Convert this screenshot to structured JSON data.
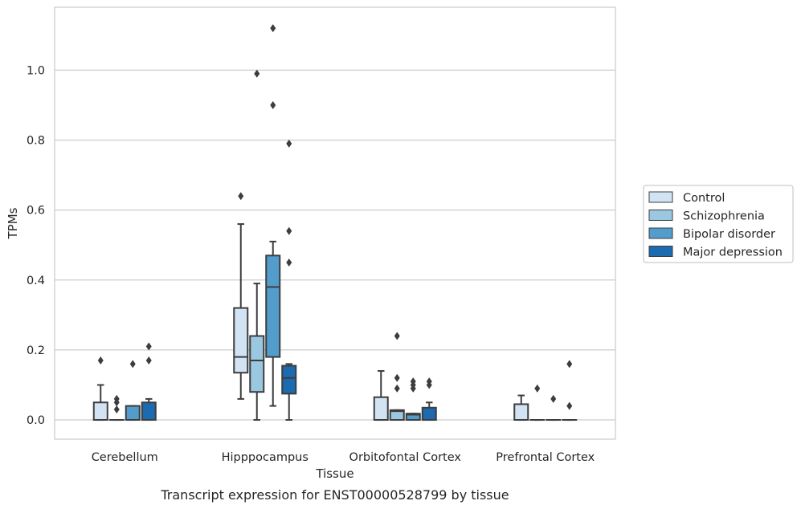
{
  "chart_data": {
    "type": "box",
    "title": "",
    "caption": "Transcript expression for ENST00000528799 by tissue",
    "xlabel": "Tissue",
    "ylabel": "TPMs",
    "ylim": [
      -0.055,
      1.18
    ],
    "yticks": [
      0.0,
      0.2,
      0.4,
      0.6,
      0.8,
      1.0
    ],
    "ytick_labels": [
      "0.0",
      "0.2",
      "0.4",
      "0.6",
      "0.8",
      "1.0"
    ],
    "grid": "horizontal",
    "legend_position": "right",
    "categories": [
      "Cerebellum",
      "Hipppocampus",
      "Orbitofontal Cortex",
      "Prefrontal Cortex"
    ],
    "series": [
      {
        "name": "Control",
        "color": "#d2e3f3",
        "boxes": [
          {
            "whislo": 0.0,
            "q1": 0.0,
            "med": 0.0,
            "q3": 0.05,
            "whishi": 0.1,
            "fliers": [
              0.17
            ]
          },
          {
            "whislo": 0.06,
            "q1": 0.135,
            "med": 0.18,
            "q3": 0.32,
            "whishi": 0.56,
            "fliers": [
              0.64
            ]
          },
          {
            "whislo": 0.0,
            "q1": 0.0,
            "med": 0.0,
            "q3": 0.065,
            "whishi": 0.14,
            "fliers": []
          },
          {
            "whislo": 0.0,
            "q1": 0.0,
            "med": 0.0,
            "q3": 0.045,
            "whishi": 0.07,
            "fliers": []
          }
        ]
      },
      {
        "name": "Schizophrenia",
        "color": "#9ac8e0",
        "boxes": [
          {
            "whislo": 0.0,
            "q1": 0.0,
            "med": 0.0,
            "q3": 0.0,
            "whishi": 0.0,
            "fliers": [
              0.03,
              0.05,
              0.06
            ]
          },
          {
            "whislo": 0.0,
            "q1": 0.08,
            "med": 0.17,
            "q3": 0.24,
            "whishi": 0.39,
            "fliers": [
              0.99
            ]
          },
          {
            "whislo": 0.0,
            "q1": 0.0,
            "med": 0.025,
            "q3": 0.028,
            "whishi": 0.028,
            "fliers": [
              0.09,
              0.12,
              0.24
            ]
          },
          {
            "whislo": 0.0,
            "q1": 0.0,
            "med": 0.0,
            "q3": 0.0,
            "whishi": 0.0,
            "fliers": [
              0.09
            ]
          }
        ]
      },
      {
        "name": "Bipolar disorder",
        "color": "#529dcc",
        "boxes": [
          {
            "whislo": 0.0,
            "q1": 0.0,
            "med": 0.0,
            "q3": 0.04,
            "whishi": 0.04,
            "fliers": [
              0.16
            ]
          },
          {
            "whislo": 0.04,
            "q1": 0.18,
            "med": 0.38,
            "q3": 0.47,
            "whishi": 0.51,
            "fliers": [
              0.9,
              1.12
            ]
          },
          {
            "whislo": 0.0,
            "q1": 0.0,
            "med": 0.015,
            "q3": 0.018,
            "whishi": 0.018,
            "fliers": [
              0.09,
              0.1,
              0.11
            ]
          },
          {
            "whislo": 0.0,
            "q1": 0.0,
            "med": 0.0,
            "q3": 0.0,
            "whishi": 0.0,
            "fliers": [
              0.06
            ]
          }
        ]
      },
      {
        "name": "Major depression",
        "color": "#1c6aaf",
        "boxes": [
          {
            "whislo": 0.0,
            "q1": 0.0,
            "med": 0.0,
            "q3": 0.05,
            "whishi": 0.06,
            "fliers": [
              0.17,
              0.21
            ]
          },
          {
            "whislo": 0.0,
            "q1": 0.075,
            "med": 0.12,
            "q3": 0.155,
            "whishi": 0.16,
            "fliers": [
              0.45,
              0.54,
              0.79
            ]
          },
          {
            "whislo": 0.0,
            "q1": 0.0,
            "med": 0.0,
            "q3": 0.035,
            "whishi": 0.05,
            "fliers": [
              0.1,
              0.11
            ]
          },
          {
            "whislo": 0.0,
            "q1": 0.0,
            "med": 0.0,
            "q3": 0.0,
            "whishi": 0.0,
            "fliers": [
              0.04,
              0.16
            ]
          }
        ]
      }
    ]
  }
}
